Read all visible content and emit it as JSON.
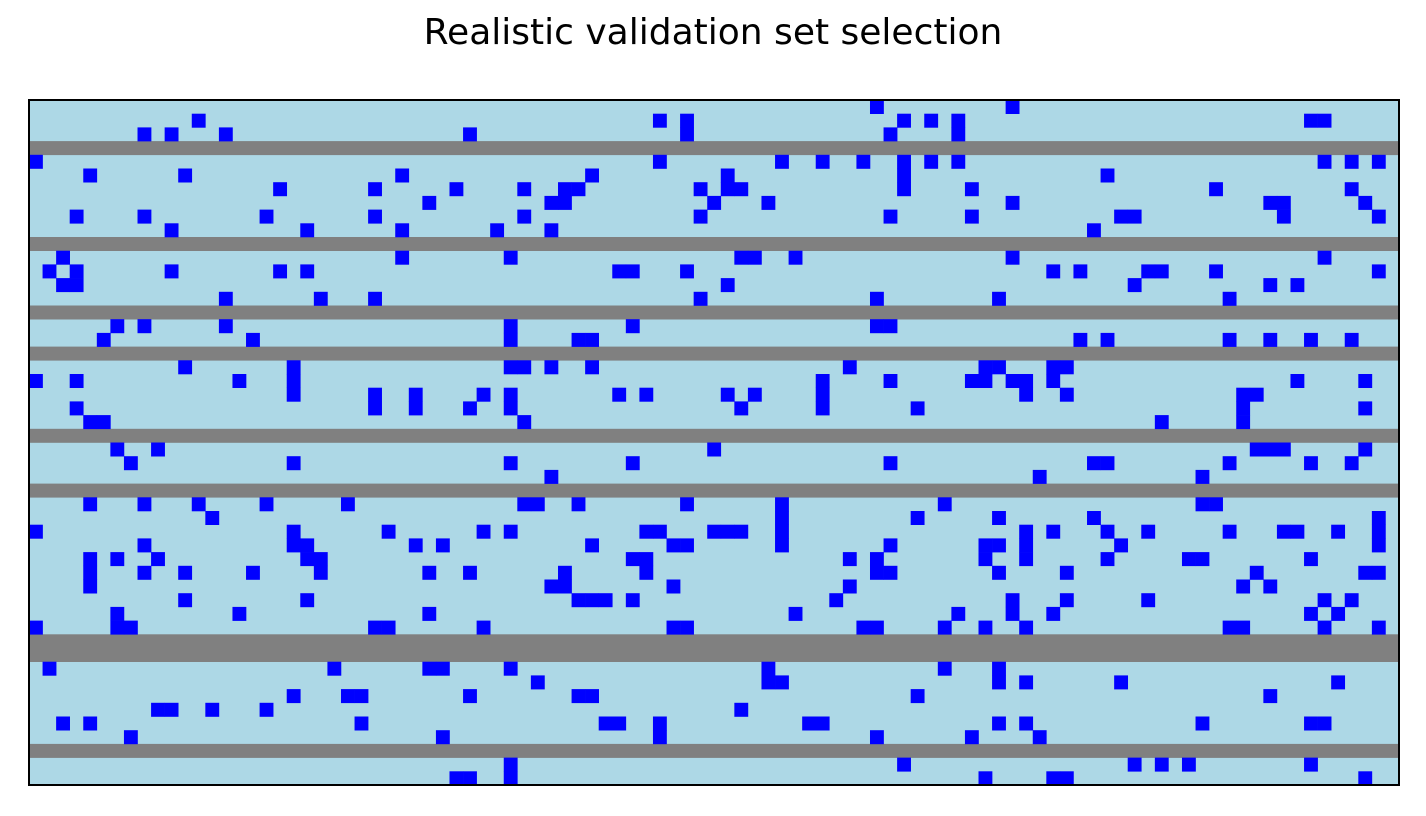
{
  "chart_data": {
    "type": "heatmap",
    "title": "Realistic validation set selection",
    "xlabel": "",
    "ylabel": "",
    "n_cols": 101,
    "n_rows": 50,
    "colors": {
      "background": "#ADD8E6",
      "selected": "#0000FF",
      "excluded_row": "#808080"
    },
    "grid": false,
    "excluded_rows": [
      3,
      10,
      15,
      18,
      24,
      28,
      39,
      40,
      47
    ],
    "selected_cells": [
      [
        0,
        62
      ],
      [
        0,
        72
      ],
      [
        1,
        12
      ],
      [
        1,
        46
      ],
      [
        1,
        48
      ],
      [
        1,
        64
      ],
      [
        1,
        66
      ],
      [
        1,
        68
      ],
      [
        1,
        94
      ],
      [
        1,
        95
      ],
      [
        2,
        8
      ],
      [
        2,
        10
      ],
      [
        2,
        14
      ],
      [
        2,
        32
      ],
      [
        2,
        48
      ],
      [
        2,
        63
      ],
      [
        2,
        68
      ],
      [
        4,
        0
      ],
      [
        4,
        46
      ],
      [
        4,
        55
      ],
      [
        4,
        58
      ],
      [
        4,
        61
      ],
      [
        4,
        64
      ],
      [
        4,
        66
      ],
      [
        4,
        68
      ],
      [
        4,
        95
      ],
      [
        4,
        97
      ],
      [
        4,
        99
      ],
      [
        5,
        4
      ],
      [
        5,
        11
      ],
      [
        5,
        27
      ],
      [
        5,
        41
      ],
      [
        5,
        51
      ],
      [
        5,
        64
      ],
      [
        5,
        79
      ],
      [
        6,
        18
      ],
      [
        6,
        25
      ],
      [
        6,
        31
      ],
      [
        6,
        36
      ],
      [
        6,
        39
      ],
      [
        6,
        40
      ],
      [
        6,
        49
      ],
      [
        6,
        51
      ],
      [
        6,
        52
      ],
      [
        6,
        64
      ],
      [
        6,
        69
      ],
      [
        6,
        87
      ],
      [
        6,
        97
      ],
      [
        7,
        29
      ],
      [
        7,
        38
      ],
      [
        7,
        39
      ],
      [
        7,
        50
      ],
      [
        7,
        54
      ],
      [
        7,
        72
      ],
      [
        7,
        91
      ],
      [
        7,
        92
      ],
      [
        7,
        98
      ],
      [
        8,
        3
      ],
      [
        8,
        8
      ],
      [
        8,
        17
      ],
      [
        8,
        25
      ],
      [
        8,
        36
      ],
      [
        8,
        49
      ],
      [
        8,
        63
      ],
      [
        8,
        69
      ],
      [
        8,
        80
      ],
      [
        8,
        81
      ],
      [
        8,
        92
      ],
      [
        8,
        99
      ],
      [
        9,
        10
      ],
      [
        9,
        20
      ],
      [
        9,
        27
      ],
      [
        9,
        34
      ],
      [
        9,
        38
      ],
      [
        9,
        78
      ],
      [
        11,
        2
      ],
      [
        11,
        27
      ],
      [
        11,
        35
      ],
      [
        11,
        52
      ],
      [
        11,
        53
      ],
      [
        11,
        56
      ],
      [
        11,
        72
      ],
      [
        11,
        95
      ],
      [
        12,
        1
      ],
      [
        12,
        3
      ],
      [
        12,
        10
      ],
      [
        12,
        18
      ],
      [
        12,
        20
      ],
      [
        12,
        43
      ],
      [
        12,
        44
      ],
      [
        12,
        48
      ],
      [
        12,
        75
      ],
      [
        12,
        77
      ],
      [
        12,
        82
      ],
      [
        12,
        83
      ],
      [
        12,
        87
      ],
      [
        12,
        99
      ],
      [
        13,
        2
      ],
      [
        13,
        3
      ],
      [
        13,
        51
      ],
      [
        13,
        81
      ],
      [
        13,
        91
      ],
      [
        13,
        93
      ],
      [
        14,
        14
      ],
      [
        14,
        21
      ],
      [
        14,
        25
      ],
      [
        14,
        49
      ],
      [
        14,
        62
      ],
      [
        14,
        71
      ],
      [
        14,
        88
      ],
      [
        16,
        6
      ],
      [
        16,
        8
      ],
      [
        16,
        14
      ],
      [
        16,
        35
      ],
      [
        16,
        44
      ],
      [
        16,
        62
      ],
      [
        16,
        63
      ],
      [
        17,
        5
      ],
      [
        17,
        16
      ],
      [
        17,
        35
      ],
      [
        17,
        40
      ],
      [
        17,
        41
      ],
      [
        17,
        77
      ],
      [
        17,
        79
      ],
      [
        17,
        88
      ],
      [
        17,
        91
      ],
      [
        17,
        94
      ],
      [
        17,
        97
      ],
      [
        19,
        11
      ],
      [
        19,
        19
      ],
      [
        19,
        35
      ],
      [
        19,
        36
      ],
      [
        19,
        38
      ],
      [
        19,
        41
      ],
      [
        19,
        60
      ],
      [
        19,
        70
      ],
      [
        19,
        71
      ],
      [
        19,
        75
      ],
      [
        19,
        76
      ],
      [
        20,
        0
      ],
      [
        20,
        3
      ],
      [
        20,
        15
      ],
      [
        20,
        19
      ],
      [
        20,
        58
      ],
      [
        20,
        63
      ],
      [
        20,
        69
      ],
      [
        20,
        70
      ],
      [
        20,
        72
      ],
      [
        20,
        73
      ],
      [
        20,
        75
      ],
      [
        20,
        93
      ],
      [
        20,
        98
      ],
      [
        21,
        19
      ],
      [
        21,
        25
      ],
      [
        21,
        28
      ],
      [
        21,
        33
      ],
      [
        21,
        35
      ],
      [
        21,
        43
      ],
      [
        21,
        45
      ],
      [
        21,
        51
      ],
      [
        21,
        53
      ],
      [
        21,
        58
      ],
      [
        21,
        73
      ],
      [
        21,
        76
      ],
      [
        21,
        89
      ],
      [
        21,
        90
      ],
      [
        22,
        3
      ],
      [
        22,
        25
      ],
      [
        22,
        28
      ],
      [
        22,
        32
      ],
      [
        22,
        35
      ],
      [
        22,
        52
      ],
      [
        22,
        58
      ],
      [
        22,
        65
      ],
      [
        22,
        89
      ],
      [
        22,
        98
      ],
      [
        23,
        4
      ],
      [
        23,
        5
      ],
      [
        23,
        36
      ],
      [
        23,
        83
      ],
      [
        23,
        89
      ],
      [
        25,
        6
      ],
      [
        25,
        9
      ],
      [
        25,
        50
      ],
      [
        25,
        90
      ],
      [
        25,
        91
      ],
      [
        25,
        92
      ],
      [
        25,
        98
      ],
      [
        26,
        7
      ],
      [
        26,
        19
      ],
      [
        26,
        35
      ],
      [
        26,
        44
      ],
      [
        26,
        63
      ],
      [
        26,
        78
      ],
      [
        26,
        79
      ],
      [
        26,
        88
      ],
      [
        26,
        94
      ],
      [
        26,
        97
      ],
      [
        27,
        38
      ],
      [
        27,
        74
      ],
      [
        27,
        86
      ],
      [
        29,
        4
      ],
      [
        29,
        8
      ],
      [
        29,
        12
      ],
      [
        29,
        17
      ],
      [
        29,
        23
      ],
      [
        29,
        36
      ],
      [
        29,
        37
      ],
      [
        29,
        40
      ],
      [
        29,
        48
      ],
      [
        29,
        55
      ],
      [
        29,
        67
      ],
      [
        29,
        86
      ],
      [
        29,
        87
      ],
      [
        30,
        13
      ],
      [
        30,
        55
      ],
      [
        30,
        65
      ],
      [
        30,
        71
      ],
      [
        30,
        78
      ],
      [
        30,
        99
      ],
      [
        31,
        0
      ],
      [
        31,
        19
      ],
      [
        31,
        26
      ],
      [
        31,
        33
      ],
      [
        31,
        35
      ],
      [
        31,
        45
      ],
      [
        31,
        46
      ],
      [
        31,
        50
      ],
      [
        31,
        51
      ],
      [
        31,
        52
      ],
      [
        31,
        55
      ],
      [
        31,
        73
      ],
      [
        31,
        75
      ],
      [
        31,
        79
      ],
      [
        31,
        82
      ],
      [
        31,
        88
      ],
      [
        31,
        92
      ],
      [
        31,
        93
      ],
      [
        31,
        96
      ],
      [
        31,
        99
      ],
      [
        32,
        8
      ],
      [
        32,
        19
      ],
      [
        32,
        20
      ],
      [
        32,
        28
      ],
      [
        32,
        30
      ],
      [
        32,
        41
      ],
      [
        32,
        47
      ],
      [
        32,
        48
      ],
      [
        32,
        55
      ],
      [
        32,
        63
      ],
      [
        32,
        70
      ],
      [
        32,
        71
      ],
      [
        32,
        73
      ],
      [
        32,
        80
      ],
      [
        32,
        99
      ],
      [
        33,
        4
      ],
      [
        33,
        6
      ],
      [
        33,
        9
      ],
      [
        33,
        20
      ],
      [
        33,
        21
      ],
      [
        33,
        44
      ],
      [
        33,
        45
      ],
      [
        33,
        60
      ],
      [
        33,
        62
      ],
      [
        33,
        70
      ],
      [
        33,
        73
      ],
      [
        33,
        79
      ],
      [
        33,
        85
      ],
      [
        33,
        86
      ],
      [
        33,
        94
      ],
      [
        34,
        4
      ],
      [
        34,
        8
      ],
      [
        34,
        11
      ],
      [
        34,
        16
      ],
      [
        34,
        21
      ],
      [
        34,
        29
      ],
      [
        34,
        32
      ],
      [
        34,
        39
      ],
      [
        34,
        45
      ],
      [
        34,
        62
      ],
      [
        34,
        63
      ],
      [
        34,
        71
      ],
      [
        34,
        76
      ],
      [
        34,
        90
      ],
      [
        34,
        98
      ],
      [
        34,
        99
      ],
      [
        35,
        4
      ],
      [
        35,
        38
      ],
      [
        35,
        39
      ],
      [
        35,
        47
      ],
      [
        35,
        60
      ],
      [
        35,
        89
      ],
      [
        35,
        91
      ],
      [
        36,
        11
      ],
      [
        36,
        20
      ],
      [
        36,
        40
      ],
      [
        36,
        41
      ],
      [
        36,
        42
      ],
      [
        36,
        44
      ],
      [
        36,
        59
      ],
      [
        36,
        72
      ],
      [
        36,
        76
      ],
      [
        36,
        82
      ],
      [
        36,
        95
      ],
      [
        36,
        97
      ],
      [
        37,
        6
      ],
      [
        37,
        15
      ],
      [
        37,
        29
      ],
      [
        37,
        56
      ],
      [
        37,
        68
      ],
      [
        37,
        72
      ],
      [
        37,
        75
      ],
      [
        37,
        94
      ],
      [
        37,
        96
      ],
      [
        38,
        0
      ],
      [
        38,
        6
      ],
      [
        38,
        7
      ],
      [
        38,
        25
      ],
      [
        38,
        26
      ],
      [
        38,
        33
      ],
      [
        38,
        47
      ],
      [
        38,
        48
      ],
      [
        38,
        61
      ],
      [
        38,
        62
      ],
      [
        38,
        67
      ],
      [
        38,
        70
      ],
      [
        38,
        73
      ],
      [
        38,
        88
      ],
      [
        38,
        89
      ],
      [
        38,
        95
      ],
      [
        38,
        99
      ],
      [
        41,
        1
      ],
      [
        41,
        22
      ],
      [
        41,
        29
      ],
      [
        41,
        30
      ],
      [
        41,
        35
      ],
      [
        41,
        54
      ],
      [
        41,
        67
      ],
      [
        41,
        71
      ],
      [
        42,
        37
      ],
      [
        42,
        54
      ],
      [
        42,
        55
      ],
      [
        42,
        71
      ],
      [
        42,
        73
      ],
      [
        42,
        80
      ],
      [
        42,
        96
      ],
      [
        43,
        19
      ],
      [
        43,
        23
      ],
      [
        43,
        24
      ],
      [
        43,
        32
      ],
      [
        43,
        40
      ],
      [
        43,
        41
      ],
      [
        43,
        65
      ],
      [
        43,
        91
      ],
      [
        44,
        9
      ],
      [
        44,
        10
      ],
      [
        44,
        13
      ],
      [
        44,
        17
      ],
      [
        44,
        52
      ],
      [
        45,
        2
      ],
      [
        45,
        4
      ],
      [
        45,
        24
      ],
      [
        45,
        42
      ],
      [
        45,
        43
      ],
      [
        45,
        46
      ],
      [
        45,
        57
      ],
      [
        45,
        58
      ],
      [
        45,
        71
      ],
      [
        45,
        73
      ],
      [
        45,
        86
      ],
      [
        45,
        94
      ],
      [
        45,
        95
      ],
      [
        46,
        7
      ],
      [
        46,
        30
      ],
      [
        46,
        46
      ],
      [
        46,
        62
      ],
      [
        46,
        69
      ],
      [
        46,
        74
      ],
      [
        48,
        35
      ],
      [
        48,
        64
      ],
      [
        48,
        81
      ],
      [
        48,
        83
      ],
      [
        48,
        85
      ],
      [
        48,
        94
      ],
      [
        49,
        31
      ],
      [
        49,
        32
      ],
      [
        49,
        35
      ],
      [
        49,
        70
      ],
      [
        49,
        75
      ],
      [
        49,
        76
      ],
      [
        49,
        98
      ]
    ]
  }
}
